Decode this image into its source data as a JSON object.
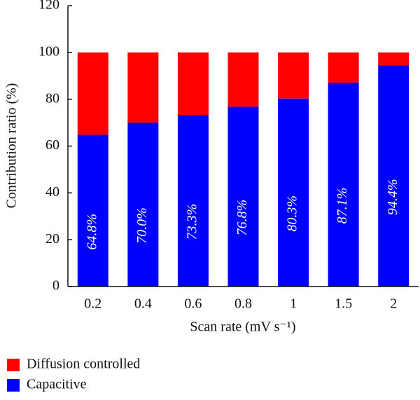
{
  "chart_data": {
    "type": "stacked_bar",
    "ylabel": "Contribution ratio (%)",
    "xlabel": "Scan rate (mV s⁻¹)",
    "categories": [
      "0.2",
      "0.4",
      "0.6",
      "0.8",
      "1",
      "1.5",
      "2"
    ],
    "series": [
      {
        "name": "Capacitive",
        "color": "#0000ff",
        "values": [
          64.8,
          70.0,
          73.3,
          76.8,
          80.3,
          87.1,
          94.4
        ],
        "value_labels": [
          "64.8%",
          "70.0%",
          "73.3%",
          "76.8%",
          "80.3%",
          "87.1%",
          "94.4%"
        ]
      },
      {
        "name": "Diffusion controlled",
        "color": "#ff0000",
        "values": [
          35.2,
          30.0,
          26.7,
          23.2,
          19.7,
          12.9,
          5.6
        ]
      }
    ],
    "ylim": [
      0,
      120
    ],
    "yticks": [
      0,
      20,
      40,
      60,
      80,
      100,
      120
    ],
    "legend": "bottom-left"
  }
}
